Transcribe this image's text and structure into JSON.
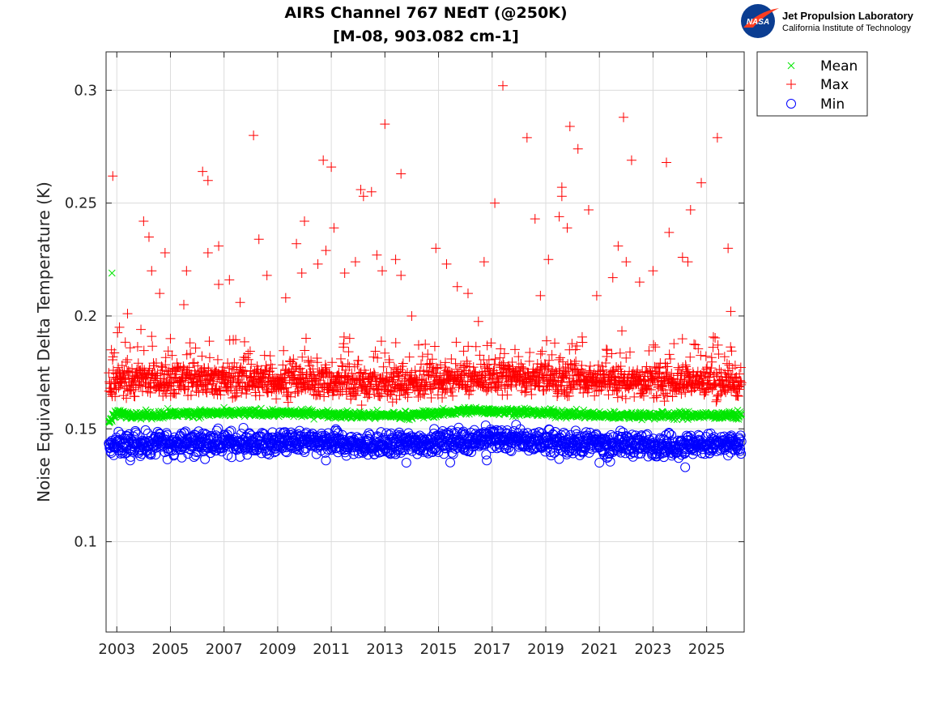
{
  "logo": {
    "name": "Jet Propulsion Laboratory",
    "sub": "California Institute of Technology",
    "mark": "NASA"
  },
  "chart_data": {
    "type": "scatter",
    "title": "AIRS Channel 767 NEdT (@250K)",
    "subtitle": "[M-08, 903.082 cm-1]",
    "xlabel": "",
    "ylabel": "Noise Equivalent Delta Temperature (K)",
    "xlim": [
      2002.6,
      2026.4
    ],
    "ylim": [
      0.06,
      0.317
    ],
    "xticks": [
      2003,
      2005,
      2007,
      2009,
      2011,
      2013,
      2015,
      2017,
      2019,
      2021,
      2023,
      2025
    ],
    "yticks": [
      0.1,
      0.15,
      0.2,
      0.25,
      0.3
    ],
    "ytick_labels": [
      "0.1",
      "0.15",
      "0.2",
      "0.25",
      "0.3"
    ],
    "grid": true,
    "legend_position": "outside-top-right",
    "series": [
      {
        "name": "Mean",
        "marker": "x",
        "color": "#00e600",
        "baseline": [
          [
            2002.7,
            0.153
          ],
          [
            2003.0,
            0.157
          ],
          [
            2004.0,
            0.156
          ],
          [
            2006.0,
            0.157
          ],
          [
            2008.0,
            0.157
          ],
          [
            2010.0,
            0.157
          ],
          [
            2012.0,
            0.156
          ],
          [
            2014.0,
            0.156
          ],
          [
            2016.0,
            0.158
          ],
          [
            2017.0,
            0.158
          ],
          [
            2019.0,
            0.157
          ],
          [
            2021.0,
            0.156
          ],
          [
            2023.0,
            0.156
          ],
          [
            2026.3,
            0.156
          ]
        ],
        "spread": 0.0008,
        "points": [
          [
            2002.82,
            0.219
          ],
          [
            2004.9,
            0.159
          ]
        ]
      },
      {
        "name": "Max",
        "marker": "+",
        "color": "#ff0000",
        "baseline": [
          [
            2002.7,
            0.168
          ],
          [
            2003.0,
            0.171
          ],
          [
            2006.0,
            0.172
          ],
          [
            2010.0,
            0.171
          ],
          [
            2013.0,
            0.17
          ],
          [
            2016.0,
            0.172
          ],
          [
            2017.0,
            0.173
          ],
          [
            2020.0,
            0.172
          ],
          [
            2023.0,
            0.171
          ],
          [
            2026.3,
            0.171
          ]
        ],
        "spread": 0.0035,
        "points": [
          [
            2002.85,
            0.262
          ],
          [
            2002.8,
            0.185
          ],
          [
            2003.1,
            0.195
          ],
          [
            2003.4,
            0.201
          ],
          [
            2003.9,
            0.194
          ],
          [
            2004.0,
            0.242
          ],
          [
            2004.2,
            0.235
          ],
          [
            2004.3,
            0.22
          ],
          [
            2004.6,
            0.21
          ],
          [
            2004.8,
            0.228
          ],
          [
            2005.0,
            0.19
          ],
          [
            2005.5,
            0.205
          ],
          [
            2005.6,
            0.22
          ],
          [
            2006.2,
            0.264
          ],
          [
            2006.4,
            0.26
          ],
          [
            2006.4,
            0.228
          ],
          [
            2006.8,
            0.231
          ],
          [
            2006.8,
            0.214
          ],
          [
            2007.2,
            0.216
          ],
          [
            2007.6,
            0.206
          ],
          [
            2008.1,
            0.28
          ],
          [
            2008.3,
            0.234
          ],
          [
            2008.6,
            0.218
          ],
          [
            2009.3,
            0.208
          ],
          [
            2009.7,
            0.232
          ],
          [
            2009.9,
            0.219
          ],
          [
            2010.0,
            0.242
          ],
          [
            2010.5,
            0.223
          ],
          [
            2010.7,
            0.269
          ],
          [
            2010.8,
            0.229
          ],
          [
            2011.0,
            0.266
          ],
          [
            2011.1,
            0.239
          ],
          [
            2011.5,
            0.219
          ],
          [
            2011.9,
            0.224
          ],
          [
            2012.1,
            0.256
          ],
          [
            2012.2,
            0.253
          ],
          [
            2012.5,
            0.255
          ],
          [
            2012.7,
            0.227
          ],
          [
            2012.9,
            0.22
          ],
          [
            2013.0,
            0.285
          ],
          [
            2013.4,
            0.225
          ],
          [
            2013.6,
            0.263
          ],
          [
            2013.6,
            0.218
          ],
          [
            2014.0,
            0.2
          ],
          [
            2014.9,
            0.23
          ],
          [
            2015.3,
            0.223
          ],
          [
            2015.7,
            0.213
          ],
          [
            2016.1,
            0.21
          ],
          [
            2016.7,
            0.224
          ],
          [
            2017.1,
            0.25
          ],
          [
            2017.4,
            0.302
          ],
          [
            2018.3,
            0.279
          ],
          [
            2018.6,
            0.243
          ],
          [
            2018.8,
            0.209
          ],
          [
            2019.1,
            0.225
          ],
          [
            2019.5,
            0.244
          ],
          [
            2019.6,
            0.257
          ],
          [
            2019.6,
            0.253
          ],
          [
            2019.8,
            0.239
          ],
          [
            2019.9,
            0.284
          ],
          [
            2020.2,
            0.274
          ],
          [
            2020.6,
            0.247
          ],
          [
            2020.9,
            0.209
          ],
          [
            2021.5,
            0.217
          ],
          [
            2021.7,
            0.231
          ],
          [
            2021.9,
            0.288
          ],
          [
            2022.0,
            0.224
          ],
          [
            2022.2,
            0.269
          ],
          [
            2022.5,
            0.215
          ],
          [
            2023.0,
            0.22
          ],
          [
            2023.5,
            0.268
          ],
          [
            2023.6,
            0.237
          ],
          [
            2024.1,
            0.226
          ],
          [
            2024.3,
            0.224
          ],
          [
            2024.4,
            0.247
          ],
          [
            2024.8,
            0.259
          ],
          [
            2025.4,
            0.279
          ],
          [
            2025.8,
            0.23
          ],
          [
            2025.9,
            0.202
          ]
        ]
      },
      {
        "name": "Min",
        "marker": "o",
        "color": "#0000ff",
        "baseline": [
          [
            2002.7,
            0.141
          ],
          [
            2003.0,
            0.143
          ],
          [
            2006.0,
            0.144
          ],
          [
            2010.0,
            0.144
          ],
          [
            2013.0,
            0.143
          ],
          [
            2016.0,
            0.145
          ],
          [
            2017.0,
            0.146
          ],
          [
            2020.0,
            0.144
          ],
          [
            2023.0,
            0.143
          ],
          [
            2026.3,
            0.143
          ]
        ],
        "spread": 0.0025,
        "points": [
          [
            2013.8,
            0.135
          ],
          [
            2016.8,
            0.136
          ],
          [
            2021.0,
            0.135
          ],
          [
            2024.2,
            0.133
          ],
          [
            2003.5,
            0.136
          ],
          [
            2010.8,
            0.136
          ]
        ]
      }
    ]
  }
}
